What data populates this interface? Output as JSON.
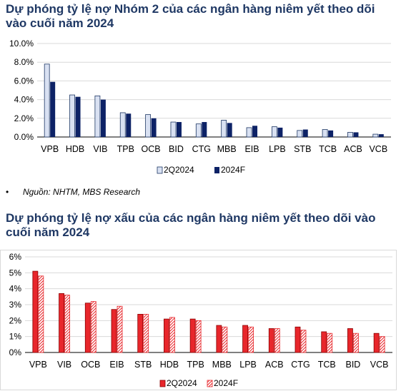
{
  "titles": {
    "chart1": "Dự phóng tỷ lệ nợ Nhóm 2 của các ngân hàng niêm yết theo dõi vào cuối năm 2024",
    "chart2": "Dự phóng tỷ lệ nợ xấu của các ngân hàng niêm yết theo dõi vào cuối năm 2024"
  },
  "source": {
    "bullet": "•",
    "text": "Nguồn: NHTM, MBS Research"
  },
  "colors": {
    "c1_s1_fill": "#d9e1f2",
    "c1_s1_stroke": "#1f3864",
    "c1_s2_fill": "#0d2266",
    "c2_s1_fill": "#e8262b",
    "c2_s1_stroke": "#8b0000",
    "c2_s2_hatch": "#e8262b"
  },
  "chart_data": [
    {
      "type": "bar",
      "categories": [
        "VPB",
        "HDB",
        "VIB",
        "TPB",
        "OCB",
        "BID",
        "CTG",
        "MBB",
        "EIB",
        "LPB",
        "STB",
        "TCB",
        "ACB",
        "VCB"
      ],
      "series": [
        {
          "name": "2Q2024",
          "values": [
            7.8,
            4.5,
            4.4,
            2.6,
            2.4,
            1.6,
            1.4,
            1.8,
            1.0,
            1.1,
            0.7,
            0.8,
            0.5,
            0.3
          ]
        },
        {
          "name": "2024F",
          "values": [
            5.9,
            4.3,
            4.0,
            2.5,
            2.0,
            1.6,
            1.6,
            1.5,
            1.2,
            1.0,
            0.8,
            0.7,
            0.5,
            0.3
          ]
        }
      ],
      "yticks": [
        "0.0%",
        "2.0%",
        "4.0%",
        "6.0%",
        "8.0%",
        "10.0%"
      ],
      "ylim": [
        0,
        10
      ],
      "legend_position": "bottom-center"
    },
    {
      "type": "bar",
      "categories": [
        "VPB",
        "VIB",
        "OCB",
        "EIB",
        "STB",
        "HDB",
        "TPB",
        "MBB",
        "LPB",
        "ACB",
        "CTG",
        "TCB",
        "BID",
        "VCB"
      ],
      "series": [
        {
          "name": "2Q2024",
          "values": [
            5.1,
            3.7,
            3.1,
            2.7,
            2.4,
            2.1,
            2.1,
            1.7,
            1.7,
            1.5,
            1.6,
            1.3,
            1.5,
            1.2
          ]
        },
        {
          "name": "2024F",
          "values": [
            4.8,
            3.6,
            3.2,
            2.9,
            2.4,
            2.2,
            2.0,
            1.6,
            1.6,
            1.5,
            1.4,
            1.2,
            1.2,
            1.0
          ]
        }
      ],
      "yticks": [
        "0%",
        "1%",
        "2%",
        "3%",
        "4%",
        "5%",
        "6%"
      ],
      "ylim": [
        0,
        6
      ],
      "legend_position": "bottom-center"
    }
  ]
}
